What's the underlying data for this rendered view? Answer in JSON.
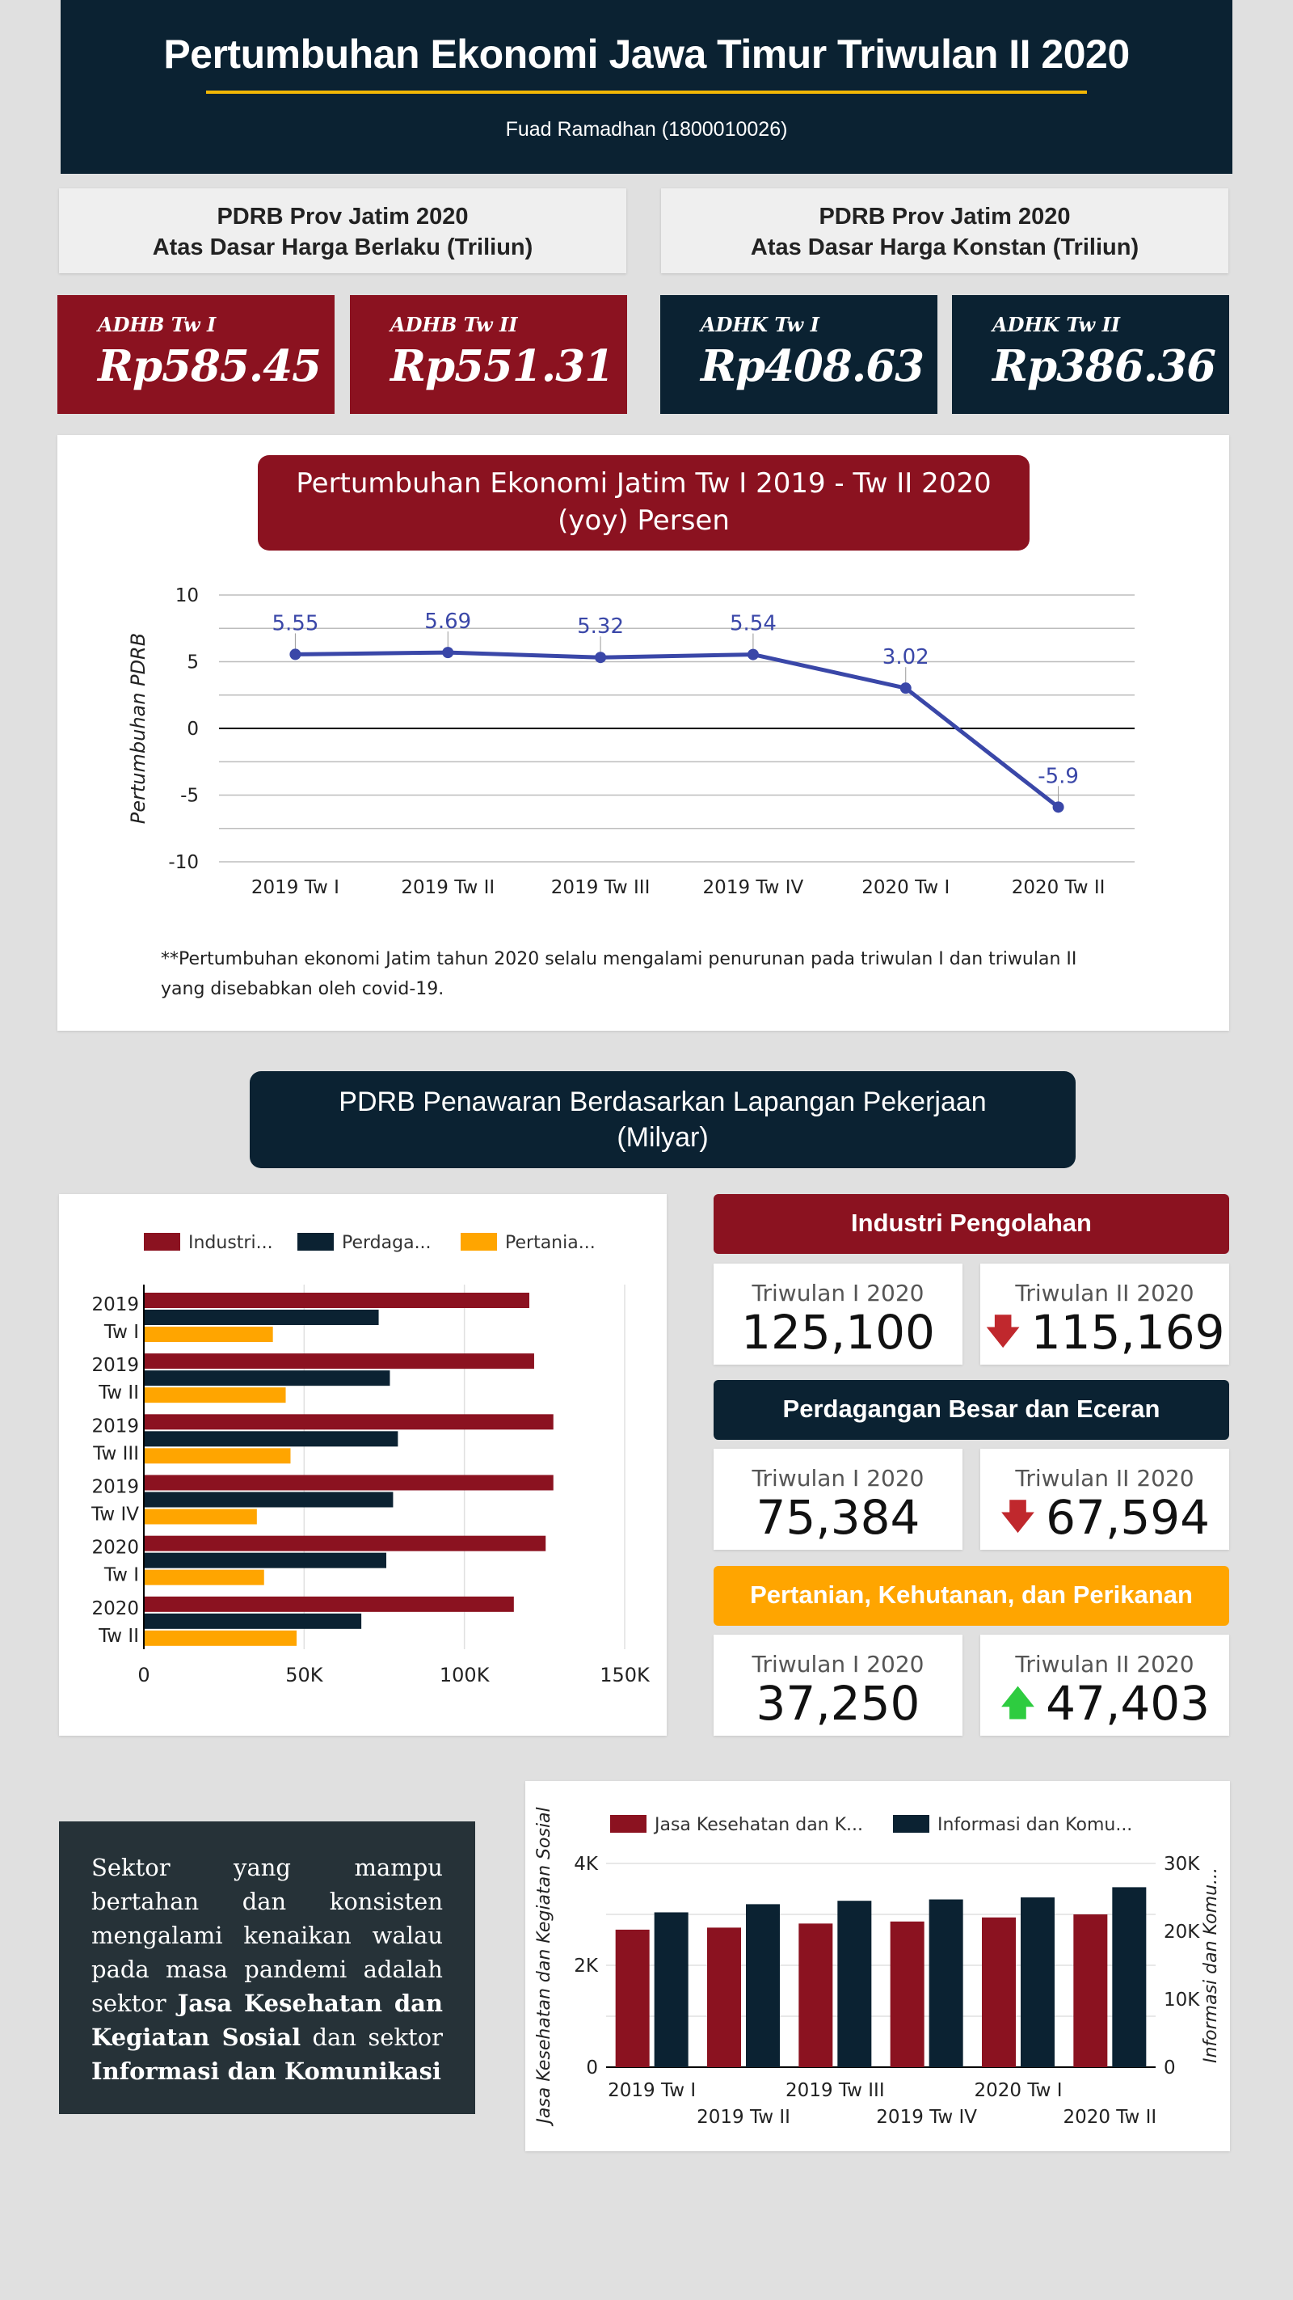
{
  "header": {
    "title": "Pertumbuhan Ekonomi Jawa Timur Triwulan II 2020",
    "author": "Fuad Ramadhan (1800010026)"
  },
  "pdrb": {
    "adhb_title_1": "PDRB Prov Jatim 2020",
    "adhb_title_2": "Atas Dasar Harga Berlaku (Triliun)",
    "adhk_title_1": "PDRB Prov Jatim 2020",
    "adhk_title_2": "Atas Dasar Harga Konstan (Triliun)",
    "kpis": [
      {
        "label": "ADHB Tw I",
        "value": "Rp585.45"
      },
      {
        "label": "ADHB Tw II",
        "value": "Rp551.31"
      },
      {
        "label": "ADHK Tw I",
        "value": "Rp408.63"
      },
      {
        "label": "ADHK Tw II",
        "value": "Rp386.36"
      }
    ]
  },
  "growth": {
    "title_1": "Pertumbuhan Ekonomi Jatim Tw I 2019 - Tw II 2020",
    "title_2": "(yoy) Persen",
    "note_1": "**Pertumbuhan ekonomi Jatim tahun 2020 selalu mengalami penurunan pada triwulan I dan triwulan II",
    "note_2": "yang disebabkan oleh covid-19."
  },
  "sector": {
    "title_1": "PDRB Penawaran Berdasarkan Lapangan Pekerjaan",
    "title_2": "(Milyar)",
    "groups": [
      {
        "name": "Industri Pengolahan",
        "q1_label": "Triwulan I 2020",
        "q1": "125,100",
        "q2_label": "Triwulan II 2020",
        "q2": "115,169",
        "trend": "down"
      },
      {
        "name": "Perdagangan Besar dan Eceran",
        "q1_label": "Triwulan I 2020",
        "q1": "75,384",
        "q2_label": "Triwulan II 2020",
        "q2": "67,594",
        "trend": "down"
      },
      {
        "name": "Pertanian, Kehutanan, dan Perikanan",
        "q1_label": "Triwulan I 2020",
        "q1": "37,250",
        "q2_label": "Triwulan II 2020",
        "q2": "47,403",
        "trend": "up"
      }
    ]
  },
  "summary": {
    "p1": "Sektor yang mampu bertahan dan konsisten mengalami kenaikan walau pada masa pandemi adalah sektor ",
    "b1": "Jasa Kesehatan dan Kegiatan Sosial",
    "p2": " dan sektor ",
    "b2": "Informasi dan Komunikasi"
  },
  "colors": {
    "red": "#8b1220",
    "navy": "#0b2232",
    "orange": "#ffa500",
    "line": "#3a47a8",
    "green": "#2ecc40"
  },
  "chart_data": [
    {
      "type": "line",
      "categories": [
        "2019 Tw I",
        "2019 Tw II",
        "2019 Tw III",
        "2019 Tw IV",
        "2020 Tw I",
        "2020 Tw II"
      ],
      "values": [
        5.55,
        5.69,
        5.32,
        5.54,
        3.02,
        -5.9
      ],
      "data_labels": [
        "5.55",
        "5.69",
        "5.32",
        "5.54",
        "3.02",
        "-5.9"
      ],
      "ylabel": "Pertumbuhan PDRB",
      "ylim": [
        -10,
        10
      ],
      "yticks": [
        "10",
        "5",
        "0",
        "-5",
        "-10"
      ],
      "grid": true
    },
    {
      "type": "bar",
      "orientation": "horizontal",
      "categories": [
        "2019 Tw I",
        "2019 Tw II",
        "2019 Tw III",
        "2019 Tw IV",
        "2020 Tw I",
        "2020 Tw II"
      ],
      "series": [
        {
          "name": "Industri...",
          "values": [
            120000,
            121500,
            127500,
            127500,
            125100,
            115169
          ]
        },
        {
          "name": "Perdaga...",
          "values": [
            73000,
            76500,
            79000,
            77500,
            75384,
            67594
          ]
        },
        {
          "name": "Pertania...",
          "values": [
            40000,
            44000,
            45500,
            35000,
            37250,
            47403
          ]
        }
      ],
      "xlim": [
        0,
        150000
      ],
      "xticks": [
        "0",
        "50K",
        "100K",
        "150K"
      ],
      "legend": "top",
      "grid": true
    },
    {
      "type": "bar",
      "categories": [
        "2019 Tw I",
        "2019 Tw II",
        "2019 Tw III",
        "2019 Tw IV",
        "2020 Tw I",
        "2020 Tw II"
      ],
      "series": [
        {
          "name": "Jasa Kesehatan dan K...",
          "axis": "left",
          "values": [
            2700,
            2740,
            2820,
            2860,
            2940,
            3000
          ]
        },
        {
          "name": "Informasi dan Komu...",
          "axis": "right",
          "values": [
            22800,
            24000,
            24500,
            24700,
            25000,
            26500
          ]
        }
      ],
      "ylabel": "Jasa Kesehatan dan Kegiatan Sosial",
      "y2label": "Informasi dan Komu...",
      "ylim": [
        0,
        4000
      ],
      "y2lim": [
        0,
        30000
      ],
      "yticks": [
        "0",
        "2K",
        "4K"
      ],
      "y2ticks": [
        "0",
        "10K",
        "20K",
        "30K"
      ],
      "legend": "top",
      "grid": true
    }
  ]
}
